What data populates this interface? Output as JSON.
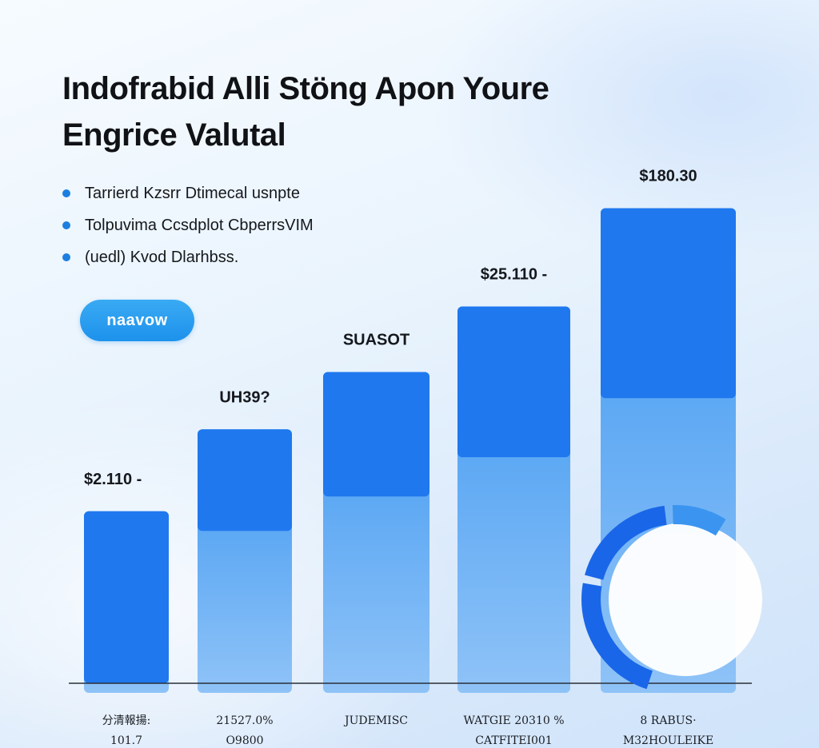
{
  "header": {
    "title_line1": "Indofrabid Alli Stöng Apon Youre",
    "title_line2": "Engrice Valutal"
  },
  "bullets": [
    "Tarrierd Kzsrr Dtimecal usnpte",
    "Tolpuvima Ccsdplot CbperrsVIM",
    "(uedl) Kvod Dlarhbss."
  ],
  "cta": {
    "label": "naavow"
  },
  "colors": {
    "bar_top": "#1f78ee",
    "bar_mid": "#3e98f2",
    "bar_light": "#8fc3f7",
    "axis": "#2a2f38",
    "donut_dark": "#1a66e8",
    "donut_light": "#3b95f0",
    "accent": "#1b7fe0"
  },
  "chart_data": {
    "type": "bar",
    "categories": [
      [
        "分清報揚:",
        "101.7"
      ],
      [
        "21527.0%",
        "O9800"
      ],
      [
        "JUDEMISC",
        ""
      ],
      [
        "WATGIE 20310 %",
        "CATFITEI001"
      ],
      [
        "8 RABUS·",
        "M32HOULEIKE"
      ]
    ],
    "value_labels": [
      "$2.110 -",
      "UH39?",
      "SUASOT",
      "$25.110 -",
      "$180.30"
    ],
    "values": [
      21,
      31,
      38,
      46,
      58
    ],
    "ylim": [
      0,
      60
    ],
    "grid": false,
    "legend": "none",
    "donut": {
      "segments": [
        {
          "value": 35,
          "color": "donut_dark"
        },
        {
          "value": 28,
          "color": "donut_dark"
        },
        {
          "value": 14,
          "color": "donut_light"
        }
      ]
    }
  }
}
